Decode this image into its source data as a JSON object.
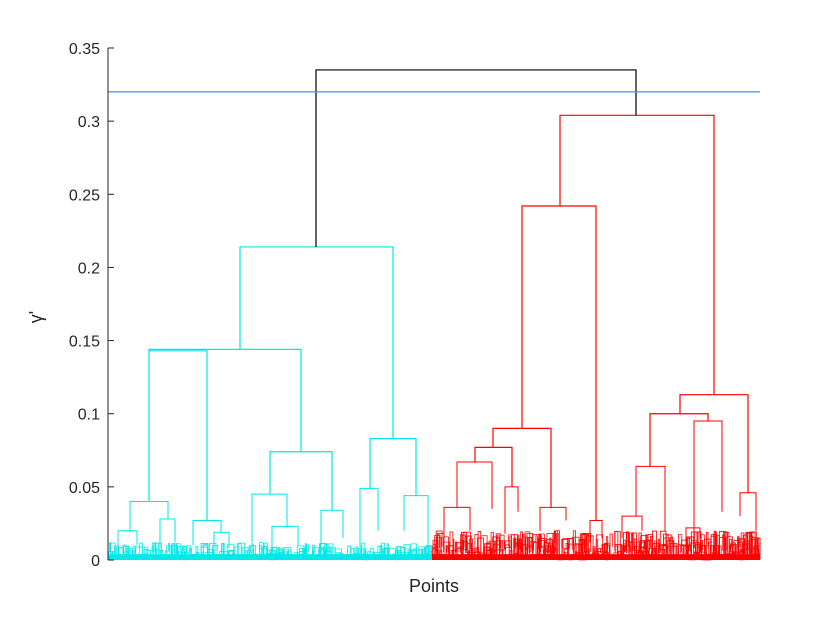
{
  "chart_data": {
    "type": "dendrogram",
    "xlabel": "Points",
    "ylabel": "γ'",
    "ylim": [
      0,
      0.35
    ],
    "yticks": [
      0,
      0.05,
      0.1,
      0.15,
      0.2,
      0.25,
      0.3,
      0.35
    ],
    "ytick_labels": [
      "0",
      "0.05",
      "0.1",
      "0.15",
      "0.2",
      "0.25",
      "0.3",
      "0.35"
    ],
    "cut_line": 0.32,
    "colors": {
      "root_link": "#000000",
      "left_cluster": "#00e8e8",
      "right_cluster": "#ff0000",
      "cut_line": "#4a90d9",
      "axis": "#262626"
    },
    "clusters": [
      {
        "color_key": "left_cluster",
        "link_heights": [
          0.214,
          0.144,
          0.143,
          0.083,
          0.074,
          0.049,
          0.045,
          0.044,
          0.04,
          0.034,
          0.027,
          0.028,
          0.023,
          0.02,
          0.02,
          0.019
        ]
      },
      {
        "color_key": "right_cluster",
        "link_heights": [
          0.304,
          0.242,
          0.113,
          0.1,
          0.095,
          0.09,
          0.077,
          0.067,
          0.064,
          0.05,
          0.046,
          0.036,
          0.033,
          0.027,
          0.022,
          0.018
        ]
      }
    ],
    "root_height": 0.335
  }
}
